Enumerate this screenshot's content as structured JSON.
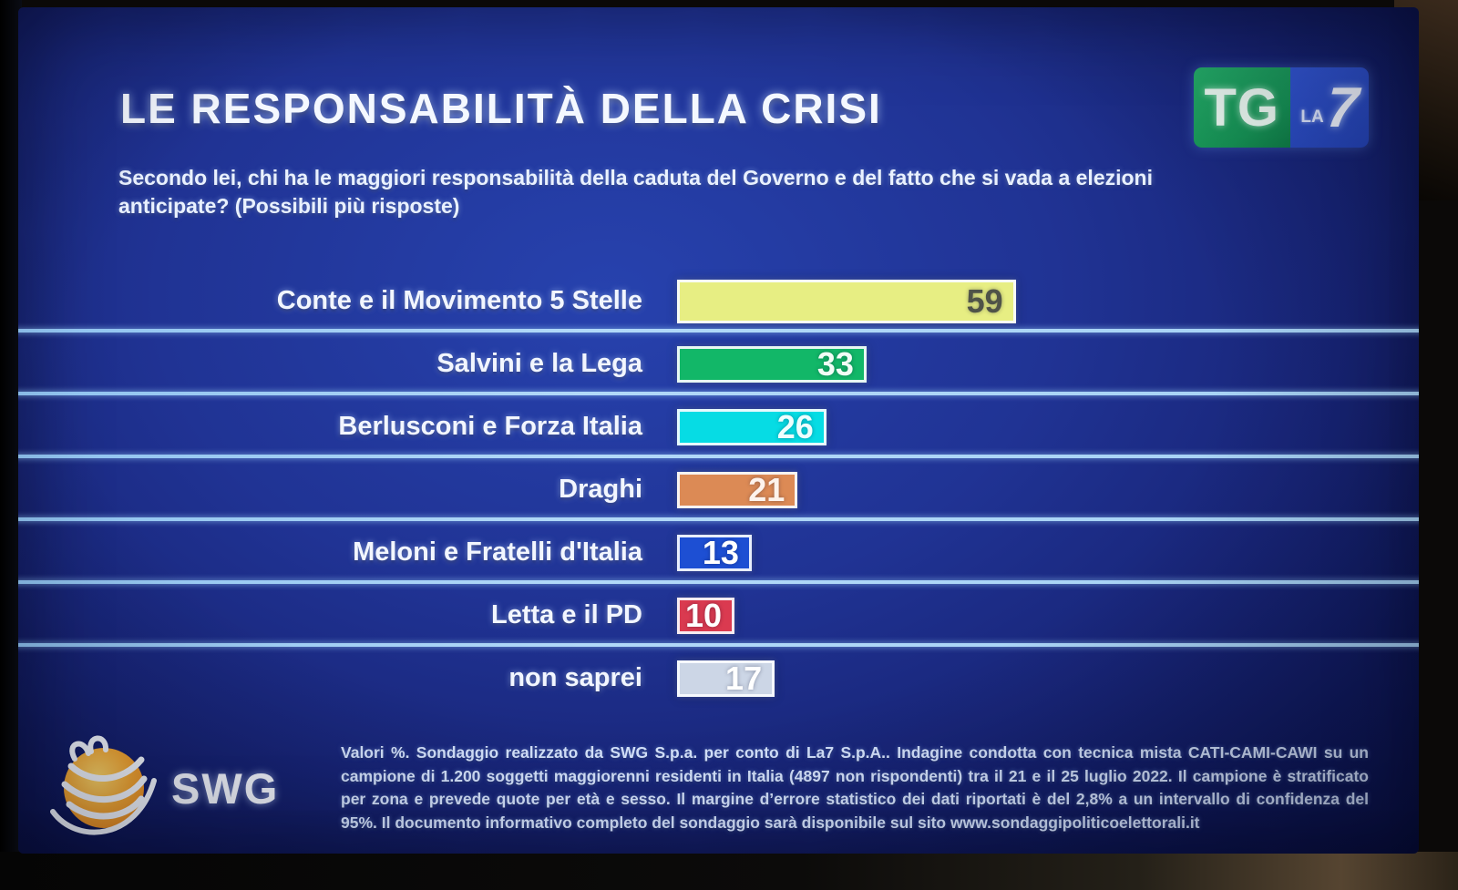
{
  "header": {
    "title": "LE RESPONSABILITÀ DELLA CRISI",
    "subtitle": "Secondo lei, chi ha le maggiori responsabilità della caduta del Governo e del fatto che si vada a elezioni anticipate? (Possibili più risposte)"
  },
  "logo": {
    "tg": "TG",
    "la": "LA",
    "seven": "7"
  },
  "chart_data": {
    "type": "bar",
    "orientation": "horizontal",
    "title": "LE RESPONSABILITÀ DELLA CRISI",
    "units": "Valori %",
    "multiple_answers": true,
    "categories": [
      "Conte e il Movimento 5 Stelle",
      "Salvini e la Lega",
      "Berlusconi e Forza Italia",
      "Draghi",
      "Meloni e Fratelli d'Italia",
      "Letta e il PD",
      "non saprei"
    ],
    "values": [
      59,
      33,
      26,
      21,
      13,
      10,
      17
    ],
    "bar_colors": [
      "#e7ee83",
      "#12b768",
      "#06dce4",
      "#dc8a55",
      "#1d4fd3",
      "#da3a50",
      "#ccd6e6"
    ],
    "value_text_colors": [
      "#4f5348",
      "#f2fdf6",
      "#eefefe",
      "#fdf3ec",
      "#ffffff",
      "#ffffff",
      "#ffffff"
    ],
    "xlim": [
      0,
      63
    ],
    "value_labels": "inside-right",
    "grid": "row-separator-lines"
  },
  "footer": {
    "swg_label": "SWG",
    "methodology": "Valori %. Sondaggio realizzato da SWG S.p.a. per conto di La7 S.p.A.. Indagine condotta con tecnica mista CATI-CAMI-CAWI su un campione di 1.200 soggetti maggiorenni residenti in Italia (4897 non rispondenti) tra il 21 e il 25 luglio 2022. Il campione è stratificato per zona e prevede quote per età e sesso. Il margine d’errore statistico dei dati riportati è del 2,8% a un intervallo di confidenza del 95%. Il documento informativo completo del sondaggio sarà disponibile sul sito www.sondaggipoliticoelettorali.it"
  },
  "colors": {
    "screen_background": "#1c2f8f",
    "separator_line": "#a9d3f2",
    "tg_green": "#18a35a",
    "la7_blue": "#2b4fc4",
    "swg_orange": "#f09a28"
  }
}
